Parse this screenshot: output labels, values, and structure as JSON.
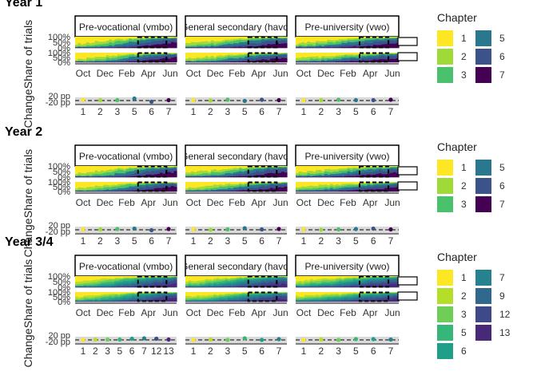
{
  "figure": {
    "panel_titles": [
      "Pre-vocational (vmbo)",
      "General secondary (havo)",
      "Pre-university (vwo)"
    ],
    "axis_titles": {
      "share": "Share of trials",
      "change": "Change"
    },
    "month_ticks": [
      "Oct",
      "Dec",
      "Feb",
      "Apr",
      "Jun"
    ],
    "share_ticks": [
      "100%",
      "50%",
      "0%"
    ],
    "change_ticks": [
      "20 pp",
      "-20 pp"
    ],
    "legend_title": "Chapter"
  },
  "chart_data": [
    {
      "type": "area",
      "title": "Year 1",
      "chapters": [
        "1",
        "2",
        "3",
        "5",
        "6",
        "7"
      ],
      "colors": [
        "#FDE725",
        "#A0DA39",
        "#4AC16D",
        "#2A788E",
        "#3B528B",
        "#440154"
      ],
      "panels": [
        "Pre-vocational (vmbo)",
        "General secondary (havo)",
        "Pre-university (vwo)"
      ],
      "change_points": [
        [
          2,
          1,
          1,
          5,
          -3,
          1
        ],
        [
          1,
          0,
          2,
          -1,
          2,
          1
        ],
        [
          1,
          1,
          2,
          1,
          1,
          2
        ]
      ],
      "legend_placement": "right"
    },
    {
      "type": "area",
      "title": "Year 2",
      "chapters": [
        "1",
        "2",
        "3",
        "5",
        "6",
        "7"
      ],
      "colors": [
        "#FDE725",
        "#A0DA39",
        "#4AC16D",
        "#2A788E",
        "#3B528B",
        "#440154"
      ],
      "panels": [
        "Pre-vocational (vmbo)",
        "General secondary (havo)",
        "Pre-university (vwo)"
      ],
      "change_points": [
        [
          1,
          1,
          2,
          3,
          -1,
          2
        ],
        [
          1,
          0,
          1,
          4,
          1,
          2
        ],
        [
          1,
          0,
          1,
          2,
          3,
          1
        ]
      ],
      "legend_placement": "right"
    },
    {
      "type": "area",
      "title": "Year 3/4",
      "chapters": [
        "1",
        "2",
        "3",
        "5",
        "6",
        "7",
        "9",
        "12",
        "13"
      ],
      "colors": [
        "#FDE725",
        "#B5DE2B",
        "#6ECE58",
        "#35B779",
        "#1F9E89",
        "#26828E",
        "#31688E",
        "#3E4989",
        "#482878"
      ],
      "panels": [
        "Pre-vocational (vmbo)",
        "General secondary (havo)",
        "Pre-university (vwo)"
      ],
      "panel_ticks": [
        [
          "1",
          "2",
          "3",
          "5",
          "6",
          "7",
          "12",
          "13"
        ],
        [
          "1",
          "2",
          "3",
          "5",
          "6",
          "7"
        ],
        [
          "1",
          "2",
          "3",
          "5",
          "6",
          "7"
        ]
      ],
      "change_points": [
        [
          0,
          1,
          1,
          1,
          3,
          4,
          3,
          1
        ],
        [
          0,
          1,
          0,
          4,
          0,
          2
        ],
        [
          0,
          1,
          0,
          2,
          2,
          1
        ]
      ],
      "legend_placement": "right"
    }
  ]
}
